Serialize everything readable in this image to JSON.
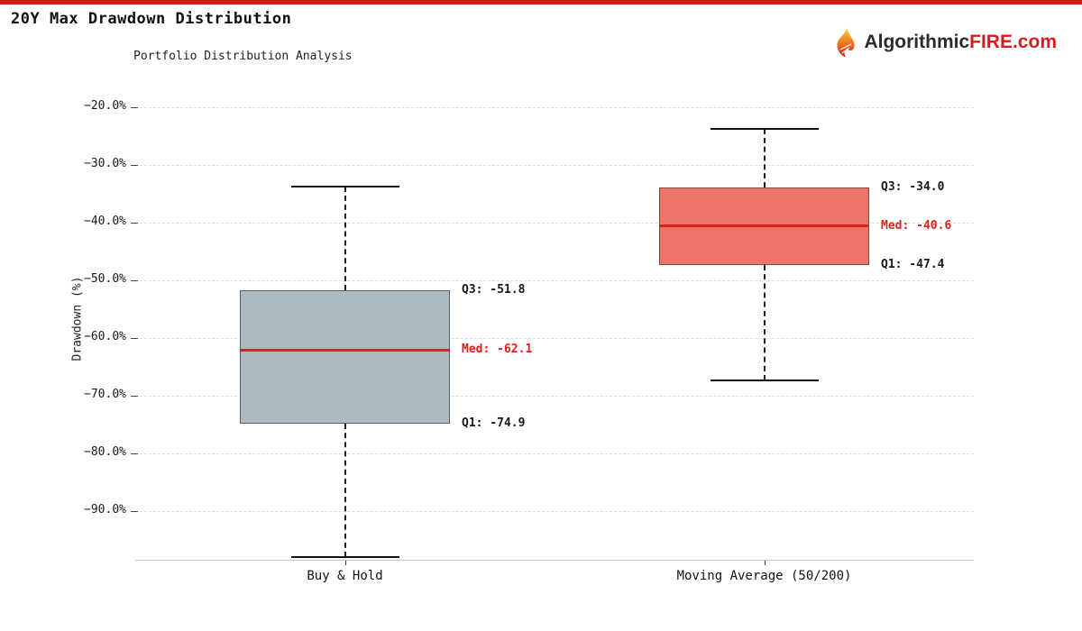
{
  "header": {
    "title": "20Y Max Drawdown Distribution",
    "subtitle": "Portfolio Distribution Analysis"
  },
  "logo": {
    "icon": "flame-icon",
    "text_dark": "Algorithmic",
    "text_red": "FIRE.com"
  },
  "colors": {
    "accent_bar": "#c42113",
    "median_line": "#d9201a",
    "grid": "#dcdcdc",
    "axis": "#c9c9c9",
    "text": "#1a1a1a",
    "annotation_red": "#d9201a"
  },
  "chart_data": {
    "type": "boxplot",
    "title": "20Y Max Drawdown Distribution",
    "subtitle": "Portfolio Distribution Analysis",
    "xlabel": "",
    "ylabel": "Drawdown (%)",
    "ylim": [
      -98.6,
      -15.5
    ],
    "grid": "horizontal-dashed",
    "yticks": {
      "values": [
        -20,
        -30,
        -40,
        -50,
        -60,
        -70,
        -80,
        -90
      ],
      "labels": [
        "−20.0%",
        "−30.0%",
        "−40.0%",
        "−50.0%",
        "−60.0%",
        "−70.0%",
        "−80.0%",
        "−90.0%"
      ]
    },
    "series": [
      {
        "label": "Buy & Hold",
        "center_frac": 0.25,
        "whisker_low": -97.9,
        "q1": -74.9,
        "median": -62.1,
        "q3": -51.8,
        "whisker_high": -33.8,
        "fill": "#aab9c2",
        "edge": "#5a6268",
        "annotations": {
          "q3": "Q3: -51.8",
          "median": "Med: -62.1",
          "q1": "Q1: -74.9"
        }
      },
      {
        "label": "Moving Average (50/200)",
        "center_frac": 0.75,
        "whisker_low": -67.3,
        "q1": -47.4,
        "median": -40.6,
        "q3": -34.0,
        "whisker_high": -23.8,
        "fill": "#ee7368",
        "edge": "#7d4a45",
        "annotations": {
          "q3": "Q3: -34.0",
          "median": "Med: -40.6",
          "q1": "Q1: -47.4"
        }
      }
    ]
  }
}
